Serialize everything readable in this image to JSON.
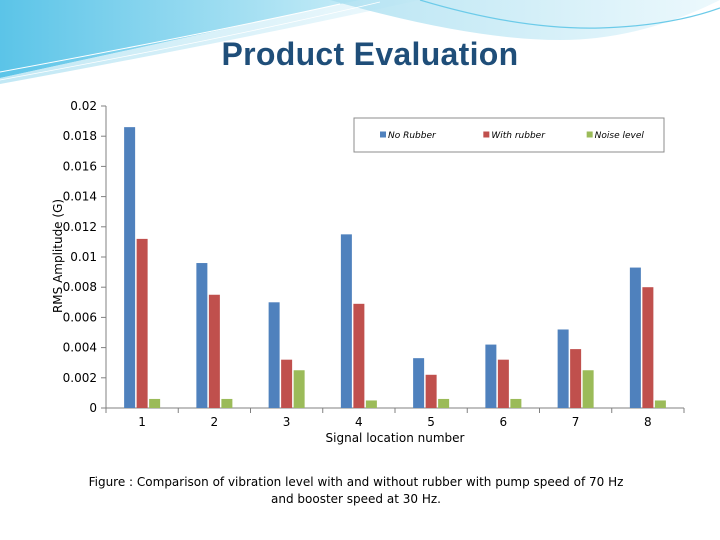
{
  "slide": {
    "title": "Product Evaluation",
    "caption_line1": "Figure : Comparison of vibration level with and without rubber with pump speed of 70 Hz",
    "caption_line2": "and booster speed at 30 Hz."
  },
  "chart_data": {
    "type": "bar",
    "xlabel": "Signal location number",
    "ylabel": "RMS Amplitude (G)",
    "ylim": [
      0,
      0.02
    ],
    "yticks": [
      "0",
      "0.002",
      "0.004",
      "0.006",
      "0.008",
      "0.01",
      "0.012",
      "0.014",
      "0.016",
      "0.018",
      "0.02"
    ],
    "categories": [
      "1",
      "2",
      "3",
      "4",
      "5",
      "6",
      "7",
      "8"
    ],
    "legend_position": "top-right",
    "grid": false,
    "series": [
      {
        "name": "No Rubber",
        "color": "#4f81bd",
        "values": [
          0.0186,
          0.0096,
          0.007,
          0.0115,
          0.0033,
          0.0042,
          0.0052,
          0.0093
        ]
      },
      {
        "name": "With rubber",
        "color": "#c0504d",
        "values": [
          0.0112,
          0.0075,
          0.0032,
          0.0069,
          0.0022,
          0.0032,
          0.0039,
          0.008
        ]
      },
      {
        "name": "Noise level",
        "color": "#9bbb59",
        "values": [
          0.0006,
          0.0006,
          0.0025,
          0.0005,
          0.0006,
          0.0006,
          0.0025,
          0.0005
        ]
      }
    ]
  }
}
